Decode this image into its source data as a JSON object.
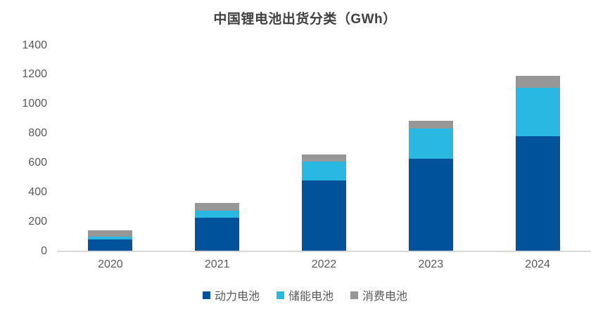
{
  "chart_data": {
    "type": "bar",
    "stacked": true,
    "title": "中国锂电池出货分类（GWh）",
    "categories": [
      "2020",
      "2021",
      "2022",
      "2023",
      "2024"
    ],
    "series": [
      {
        "key": "power-battery",
        "name": "动力电池",
        "color": "#00539B",
        "values": [
          80,
          226,
          480,
          630,
          780
        ]
      },
      {
        "key": "energy-storage-battery",
        "name": "储能电池",
        "color": "#29B8E2",
        "values": [
          16,
          48,
          130,
          206,
          330
        ]
      },
      {
        "key": "consumer-battery",
        "name": "消费电池",
        "color": "#979797",
        "values": [
          47,
          53,
          46,
          51,
          82
        ]
      }
    ],
    "totals": [
      143,
      327,
      656,
      887,
      1192
    ],
    "xlabel": "",
    "ylabel": "",
    "ylim": [
      0,
      1400
    ],
    "ytick_step": 200,
    "yticks": [
      0,
      200,
      400,
      600,
      800,
      1000,
      1200,
      1400
    ],
    "grid": false,
    "legend_position": "bottom",
    "colors": {
      "axis_text": "#595959",
      "title_text": "#404040",
      "baseline": "#D9D9D9",
      "background": "#FFFFFF"
    }
  }
}
